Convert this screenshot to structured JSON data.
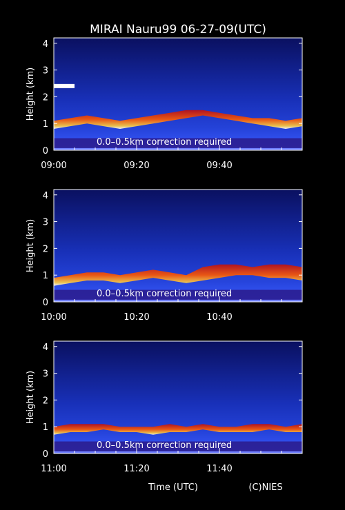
{
  "chart_data": {
    "type": "heatmap",
    "title": "MIRAI Nauru99 06-27-09(UTC)",
    "xlabel": "Time (UTC)",
    "ylabel": "Height (km)",
    "credit": "(C)NIES",
    "note": "0.0–0.5km correction required",
    "ylim": [
      0,
      4.2
    ],
    "yticks": [
      "0",
      "1",
      "2",
      "3",
      "4"
    ],
    "colormap": [
      "#000033",
      "#1020a0",
      "#2f4fe0",
      "#6a3cb0",
      "#a01818",
      "#e03000",
      "#ff8000",
      "#ffe040",
      "#ffffff"
    ],
    "panels": [
      {
        "xticks": [
          "09:00",
          "09:20",
          "09:40"
        ],
        "cloud_base_km": [
          0.8,
          0.9,
          1.0,
          0.9,
          0.8,
          0.9,
          1.0,
          1.1,
          1.2,
          1.3,
          1.2,
          1.1,
          1.0,
          0.9,
          0.8,
          0.9
        ],
        "cloud_top_km": [
          1.1,
          1.2,
          1.3,
          1.2,
          1.1,
          1.2,
          1.3,
          1.4,
          1.5,
          1.5,
          1.4,
          1.3,
          1.2,
          1.2,
          1.1,
          1.2
        ],
        "high_layer": {
          "start_min": 0,
          "end_min": 5,
          "height_km": 2.4
        }
      },
      {
        "xticks": [
          "10:00",
          "10:20",
          "10:40"
        ],
        "cloud_base_km": [
          0.6,
          0.7,
          0.8,
          0.8,
          0.7,
          0.8,
          0.9,
          0.8,
          0.7,
          0.8,
          0.9,
          1.0,
          1.0,
          0.9,
          0.9,
          0.8
        ],
        "cloud_top_km": [
          0.9,
          1.0,
          1.1,
          1.1,
          1.0,
          1.1,
          1.2,
          1.1,
          1.0,
          1.3,
          1.4,
          1.4,
          1.3,
          1.4,
          1.4,
          1.3
        ],
        "high_layer": null
      },
      {
        "xticks": [
          "11:00",
          "11:20",
          "11:40"
        ],
        "cloud_base_km": [
          0.7,
          0.8,
          0.8,
          0.9,
          0.8,
          0.8,
          0.7,
          0.8,
          0.8,
          0.9,
          0.8,
          0.8,
          0.8,
          0.9,
          0.8,
          0.8
        ],
        "cloud_top_km": [
          1.0,
          1.1,
          1.1,
          1.1,
          1.0,
          1.0,
          1.0,
          1.1,
          1.0,
          1.1,
          1.0,
          1.0,
          1.1,
          1.1,
          1.0,
          1.1
        ],
        "high_layer": null
      }
    ]
  }
}
